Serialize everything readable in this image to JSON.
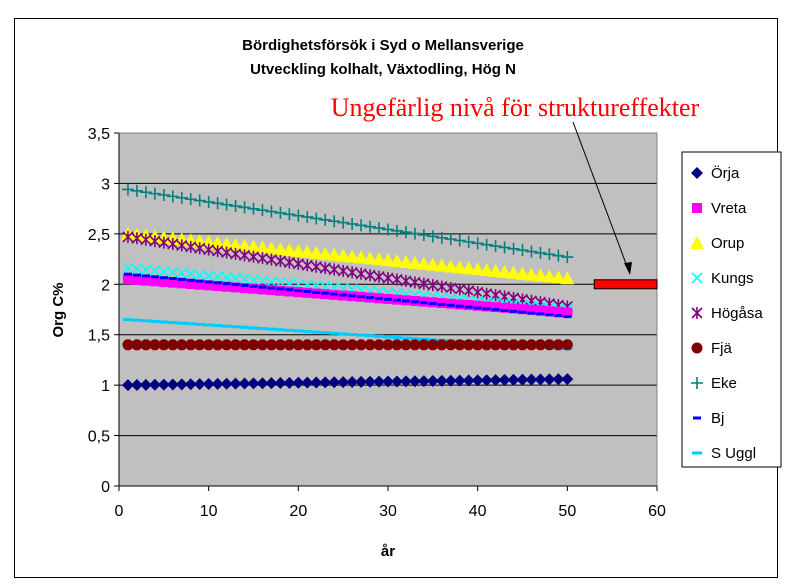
{
  "chart_data": {
    "type": "scatter",
    "title": "Bördighetsförsök i Syd o Mellansverige",
    "subtitle": "Utveckling kolhalt, Växtodling, Hög N",
    "xlabel": "år",
    "ylabel": "Org C%",
    "xlim": [
      0,
      60
    ],
    "ylim": [
      0,
      3.5
    ],
    "xticks": [
      "0",
      "10",
      "20",
      "30",
      "40",
      "50",
      "60"
    ],
    "yticks": [
      "0",
      "0,5",
      "1",
      "1,5",
      "2",
      "2,5",
      "3",
      "3,5"
    ],
    "grid": "horizontal",
    "plot_background": "#c0c0c0",
    "legend_position": "right",
    "annotation": {
      "text": "Ungefärlig nivå för struktureffekter",
      "color": "#ff0000",
      "level_y": 2.0,
      "level_x_range": [
        53,
        60
      ]
    },
    "series": [
      {
        "name": "Örja",
        "marker": "diamond",
        "color": "#000080",
        "x_start": 1,
        "x_end": 50,
        "y_start": 1.0,
        "y_end": 1.06
      },
      {
        "name": "Vreta",
        "marker": "square",
        "color": "#ff00ff",
        "x_start": 1,
        "x_end": 50,
        "y_start": 2.05,
        "y_end": 1.72
      },
      {
        "name": "Orup",
        "marker": "triangle",
        "color": "#ffff00",
        "x_start": 1,
        "x_end": 50,
        "y_start": 2.5,
        "y_end": 2.06
      },
      {
        "name": "Kungs",
        "marker": "x",
        "color": "#00ffff",
        "x_start": 1,
        "x_end": 50,
        "y_start": 2.16,
        "y_end": 1.75
      },
      {
        "name": "Högåsa",
        "marker": "star",
        "color": "#800080",
        "x_start": 1,
        "x_end": 50,
        "y_start": 2.47,
        "y_end": 1.78
      },
      {
        "name": "Fjä",
        "marker": "circle",
        "color": "#800000",
        "x_start": 1,
        "x_end": 50,
        "y_start": 1.4,
        "y_end": 1.4
      },
      {
        "name": "Eke",
        "marker": "plus",
        "color": "#008080",
        "x_start": 1,
        "x_end": 50,
        "y_start": 2.94,
        "y_end": 2.27
      },
      {
        "name": "Bj",
        "marker": "dash",
        "color": "#0000ff",
        "x_start": 1,
        "x_end": 50,
        "y_start": 2.1,
        "y_end": 1.68
      },
      {
        "name": "S Uggl",
        "marker": "longdash",
        "color": "#00ccff",
        "x_start": 1,
        "x_end": 50,
        "y_start": 1.65,
        "y_end": 1.36
      }
    ]
  }
}
